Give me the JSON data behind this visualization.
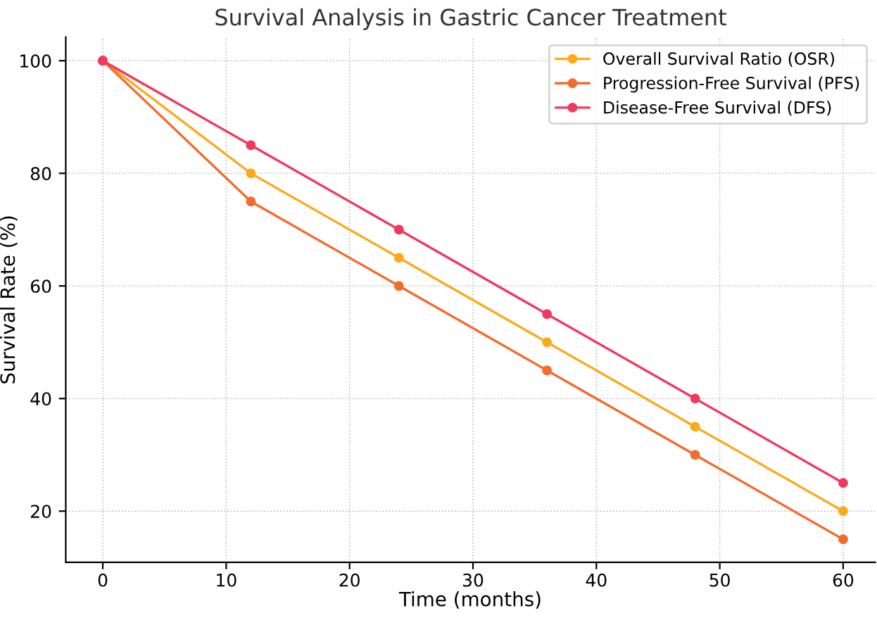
{
  "chart_data": {
    "type": "line",
    "title": "Survival Analysis in Gastric Cancer Treatment",
    "xlabel": "Time (months)",
    "ylabel": "Survival Rate (%)",
    "x": [
      0,
      12,
      24,
      36,
      48,
      60
    ],
    "series": [
      {
        "name": "Overall Survival Ratio (OSR)",
        "color": "#fbaa1c",
        "values": [
          100,
          80,
          65,
          50,
          35,
          20
        ]
      },
      {
        "name": "Progression-Free Survival (PFS)",
        "color": "#f26c2c",
        "values": [
          100,
          75,
          60,
          45,
          30,
          15
        ]
      },
      {
        "name": "Disease-Free Survival (DFS)",
        "color": "#ee3a5f",
        "values": [
          100,
          85,
          70,
          55,
          40,
          25
        ]
      }
    ],
    "xlim": [
      -3,
      62.6
    ],
    "ylim": [
      10.9,
      104.2
    ],
    "xticks": [
      0,
      10,
      20,
      30,
      40,
      50,
      60
    ],
    "yticks": [
      20,
      40,
      60,
      80,
      100
    ],
    "grid": true,
    "legend": "top right",
    "marker": "circle",
    "line_style": "solid"
  }
}
